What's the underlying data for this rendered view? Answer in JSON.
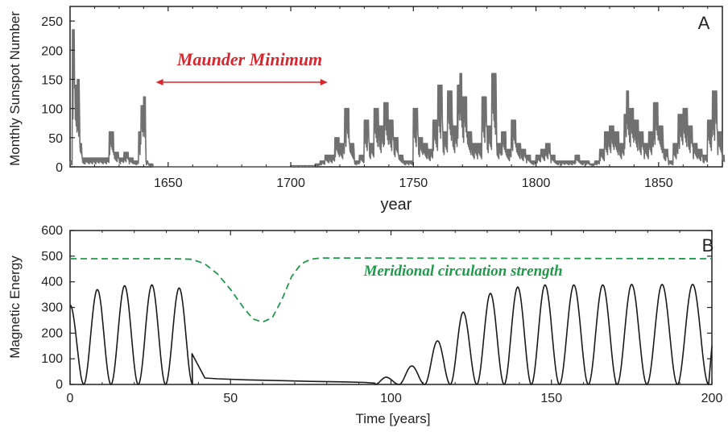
{
  "chart_data": [
    {
      "panel": "A",
      "type": "line",
      "xlabel": "year",
      "ylabel": "Monthly Sunspot Number",
      "xlim": [
        1610,
        1876
      ],
      "ylim": [
        0,
        275
      ],
      "xticks": [
        1650,
        1700,
        1750,
        1800,
        1850
      ],
      "yticks": [
        0,
        50,
        100,
        150,
        200,
        250
      ],
      "series_color": "#707070",
      "annotation": {
        "text": "Maunder Minimum",
        "color": "#d9262c",
        "from_year": 1645,
        "to_year": 1715
      },
      "series": [
        {
          "x": [
            1610,
            1611,
            1612,
            1613,
            1614,
            1615,
            1616,
            1618,
            1620,
            1622,
            1624,
            1626,
            1628,
            1630,
            1631,
            1632,
            1634,
            1636,
            1638,
            1639,
            1640,
            1641,
            1642,
            1644,
            1646,
            1650,
            1660,
            1670,
            1680,
            1690,
            1700,
            1705,
            1710,
            1712,
            1714,
            1716,
            1718,
            1720,
            1722,
            1724,
            1726,
            1728,
            1730,
            1732,
            1734,
            1736,
            1738,
            1740,
            1742,
            1744,
            1746,
            1748,
            1750,
            1752,
            1754,
            1756,
            1758,
            1760,
            1762,
            1764,
            1766,
            1768,
            1769,
            1770,
            1772,
            1774,
            1776,
            1778,
            1780,
            1782,
            1784,
            1786,
            1788,
            1790,
            1792,
            1794,
            1796,
            1798,
            1800,
            1802,
            1804,
            1806,
            1808,
            1810,
            1812,
            1814,
            1816,
            1818,
            1820,
            1822,
            1824,
            1826,
            1828,
            1830,
            1832,
            1834,
            1836,
            1837,
            1838,
            1840,
            1842,
            1844,
            1846,
            1848,
            1850,
            1852,
            1854,
            1856,
            1858,
            1860,
            1862,
            1864,
            1866,
            1868,
            1870,
            1872,
            1874,
            1876
          ],
          "values": [
            10,
            235,
            140,
            150,
            40,
            15,
            15,
            15,
            15,
            15,
            15,
            60,
            25,
            15,
            15,
            25,
            15,
            10,
            60,
            105,
            120,
            10,
            5,
            0,
            0,
            0,
            0,
            0,
            0,
            0,
            2,
            2,
            5,
            10,
            20,
            20,
            50,
            40,
            100,
            40,
            10,
            20,
            80,
            40,
            100,
            70,
            110,
            80,
            50,
            20,
            10,
            10,
            100,
            50,
            40,
            30,
            80,
            140,
            60,
            130,
            70,
            140,
            160,
            120,
            60,
            40,
            40,
            120,
            70,
            160,
            40,
            60,
            30,
            80,
            40,
            30,
            20,
            10,
            20,
            30,
            40,
            20,
            10,
            10,
            10,
            10,
            20,
            10,
            10,
            5,
            10,
            30,
            60,
            70,
            60,
            40,
            90,
            130,
            100,
            80,
            60,
            40,
            60,
            110,
            70,
            30,
            10,
            40,
            90,
            100,
            70,
            40,
            30,
            20,
            80,
            130,
            60,
            20
          ]
        }
      ]
    },
    {
      "panel": "B",
      "type": "line",
      "xlabel": "Time [years]",
      "ylabel": "Magnetic Energy",
      "xlim": [
        0,
        200
      ],
      "ylim": [
        0,
        600
      ],
      "xticks": [
        0,
        50,
        100,
        150,
        200
      ],
      "yticks": [
        0,
        100,
        200,
        300,
        400,
        500,
        600
      ],
      "series": [
        {
          "style": "solid",
          "color": "#1a1a1a",
          "cycle_peaks": [
            {
              "t": 8.5,
              "v": 370
            },
            {
              "t": 17,
              "v": 385
            },
            {
              "t": 25.5,
              "v": 388
            },
            {
              "t": 34,
              "v": 376
            },
            {
              "t": 98.5,
              "v": 28
            },
            {
              "t": 106.5,
              "v": 72
            },
            {
              "t": 114.5,
              "v": 170
            },
            {
              "t": 122.5,
              "v": 282
            },
            {
              "t": 131,
              "v": 355
            },
            {
              "t": 139.5,
              "v": 380
            },
            {
              "t": 148,
              "v": 388
            },
            {
              "t": 157,
              "v": 388
            },
            {
              "t": 166,
              "v": 388
            },
            {
              "t": 175,
              "v": 390
            },
            {
              "t": 184.5,
              "v": 390
            },
            {
              "t": 194,
              "v": 390
            }
          ],
          "quiet_tail": [
            {
              "t": 38,
              "v": 120
            },
            {
              "t": 42,
              "v": 25
            },
            {
              "t": 46,
              "v": 22
            },
            {
              "t": 55,
              "v": 18
            },
            {
              "t": 65,
              "v": 15
            },
            {
              "t": 75,
              "v": 12
            },
            {
              "t": 85,
              "v": 10
            },
            {
              "t": 92,
              "v": 8
            },
            {
              "t": 95,
              "v": 5
            }
          ]
        },
        {
          "name": "Meridional circulation strength",
          "style": "dashed",
          "color": "#1f9a4a",
          "x": [
            0,
            32,
            38,
            42,
            46,
            50,
            54,
            57,
            60,
            63,
            66,
            69,
            72,
            75,
            78,
            90,
            200
          ],
          "values": [
            490,
            490,
            488,
            470,
            430,
            370,
            300,
            255,
            243,
            260,
            330,
            420,
            470,
            488,
            493,
            493,
            490
          ]
        }
      ]
    }
  ]
}
